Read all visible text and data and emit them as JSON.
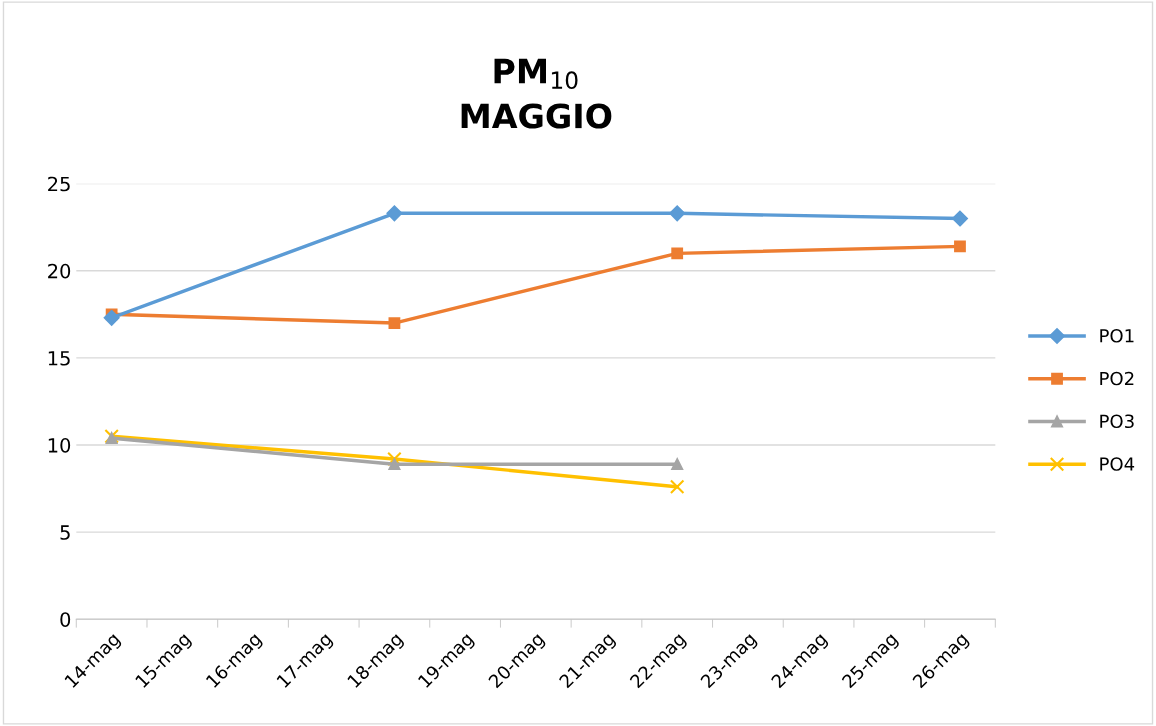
{
  "chart_data": {
    "type": "line",
    "title": "PM$_{10}$\nMAGGIO",
    "categories": [
      "14-mag",
      "15-mag",
      "16-mag",
      "17-mag",
      "18-mag",
      "19-mag",
      "20-mag",
      "21-mag",
      "22-mag",
      "23-mag",
      "24-mag",
      "25-mag",
      "26-mag"
    ],
    "series": [
      {
        "name": "PO1",
        "color": "#5b9bd5",
        "marker": "diamond",
        "values": [
          17.3,
          null,
          null,
          null,
          23.3,
          null,
          null,
          null,
          23.3,
          null,
          null,
          null,
          23.0
        ]
      },
      {
        "name": "PO2",
        "color": "#ed7d31",
        "marker": "square",
        "values": [
          17.5,
          null,
          null,
          null,
          17.0,
          null,
          null,
          null,
          21.0,
          null,
          null,
          null,
          21.4
        ]
      },
      {
        "name": "PO3",
        "color": "#a5a5a5",
        "marker": "triangle",
        "values": [
          10.4,
          null,
          null,
          null,
          8.9,
          null,
          null,
          null,
          8.9,
          null,
          null,
          null,
          null
        ]
      },
      {
        "name": "PO4",
        "color": "#ffc000",
        "marker": "cross",
        "values": [
          10.5,
          null,
          null,
          null,
          9.2,
          null,
          null,
          null,
          7.6,
          null,
          null,
          null,
          null
        ]
      }
    ],
    "ylim": [
      0,
      25
    ],
    "yticks": [
      0,
      5,
      10,
      15,
      20,
      25
    ],
    "grid": "y",
    "legend": "right",
    "line_style": "solid"
  }
}
